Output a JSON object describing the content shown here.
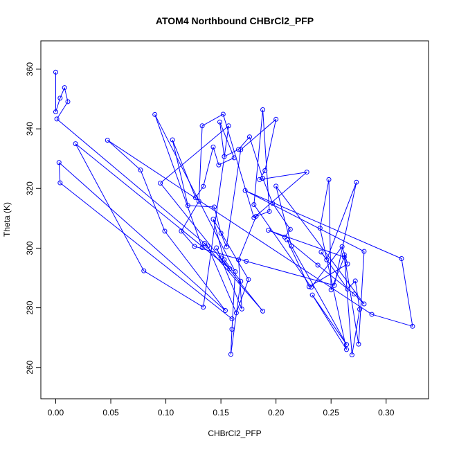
{
  "chart_data": {
    "type": "line",
    "title": "ATOM4 Northbound CHBrCl2_PFP",
    "xlabel": "CHBrCl2_PFP",
    "ylabel": "Theta (K)",
    "xlim": [
      -0.0135,
      0.3385
    ],
    "ylim": [
      249.5,
      369.5
    ],
    "x_ticks": [
      0.0,
      0.05,
      0.1,
      0.15,
      0.2,
      0.25,
      0.3
    ],
    "x_tick_labels": [
      "0.00",
      "0.05",
      "0.10",
      "0.15",
      "0.20",
      "0.25",
      "0.30"
    ],
    "y_ticks": [
      260,
      280,
      300,
      320,
      340,
      360
    ],
    "y_tick_labels": [
      "260",
      "280",
      "300",
      "320",
      "340",
      "360"
    ],
    "grid": false,
    "series": [
      {
        "marker": "open-circle",
        "color": "#0000ff",
        "points": [
          [
            0.0,
            359.0
          ],
          [
            0.0,
            345.7
          ],
          [
            0.004,
            350.3
          ],
          [
            0.008,
            353.8
          ],
          [
            0.011,
            349.1
          ],
          [
            0.001,
            343.3
          ],
          [
            0.138,
            300.7
          ],
          [
            0.164,
            278.3
          ],
          [
            0.175,
            289.5
          ],
          [
            0.143,
            309.7
          ],
          [
            0.153,
            296.1
          ],
          [
            0.168,
            288.9
          ],
          [
            0.159,
            264.4
          ],
          [
            0.16,
            272.8
          ],
          [
            0.163,
            292.1
          ],
          [
            0.09,
            344.8
          ],
          [
            0.133,
            300.2
          ],
          [
            0.135,
            301.6
          ],
          [
            0.188,
            278.9
          ],
          [
            0.095,
            321.8
          ],
          [
            0.157,
            341.0
          ],
          [
            0.134,
            280.2
          ],
          [
            0.08,
            292.4
          ],
          [
            0.018,
            335.0
          ],
          [
            0.158,
            293.1
          ],
          [
            0.15,
            296.7
          ],
          [
            0.146,
            300.1
          ],
          [
            0.169,
            279.6
          ],
          [
            0.166,
            296.1
          ],
          [
            0.182,
            310.7
          ],
          [
            0.194,
            312.3
          ],
          [
            0.188,
            346.4
          ],
          [
            0.18,
            314.6
          ],
          [
            0.232,
            286.9
          ],
          [
            0.26,
            300.5
          ],
          [
            0.265,
            294.7
          ],
          [
            0.23,
            287.1
          ],
          [
            0.21,
            302.8
          ],
          [
            0.238,
            294.3
          ],
          [
            0.271,
            284.6
          ],
          [
            0.28,
            281.3
          ],
          [
            0.2,
            320.8
          ],
          [
            0.214,
            300.7
          ],
          [
            0.264,
            267.7
          ],
          [
            0.233,
            284.3
          ],
          [
            0.264,
            266.0
          ],
          [
            0.24,
            306.7
          ],
          [
            0.248,
            323.0
          ],
          [
            0.25,
            286.0
          ],
          [
            0.262,
            297.0
          ],
          [
            0.193,
            306.0
          ],
          [
            0.208,
            303.7
          ],
          [
            0.213,
            306.3
          ],
          [
            0.197,
            315.0
          ],
          [
            0.188,
            323.4
          ],
          [
            0.176,
            337.3
          ],
          [
            0.166,
            333.1
          ],
          [
            0.153,
            330.7
          ],
          [
            0.149,
            342.3
          ],
          [
            0.162,
            330.3
          ],
          [
            0.148,
            327.9
          ],
          [
            0.143,
            333.9
          ],
          [
            0.134,
            320.7
          ],
          [
            0.127,
            316.9
          ],
          [
            0.106,
            336.3
          ],
          [
            0.12,
            314.3
          ],
          [
            0.144,
            313.8
          ],
          [
            0.15,
            305.0
          ],
          [
            0.155,
            300.4
          ],
          [
            0.168,
            333.0
          ],
          [
            0.2,
            343.2
          ],
          [
            0.19,
            326.0
          ],
          [
            0.185,
            323.0
          ],
          [
            0.228,
            325.5
          ],
          [
            0.18,
            310.2
          ],
          [
            0.152,
            344.9
          ],
          [
            0.133,
            341.0
          ],
          [
            0.13,
            315.7
          ],
          [
            0.114,
            305.7
          ],
          [
            0.126,
            300.6
          ],
          [
            0.173,
            295.6
          ],
          [
            0.253,
            287.5
          ],
          [
            0.273,
            322.1
          ],
          [
            0.246,
            296.1
          ],
          [
            0.241,
            298.7
          ],
          [
            0.265,
            286.3
          ],
          [
            0.272,
            289.0
          ],
          [
            0.276,
            279.5
          ],
          [
            0.269,
            264.2
          ],
          [
            0.262,
            297.8
          ],
          [
            0.275,
            267.8
          ],
          [
            0.28,
            298.9
          ],
          [
            0.172,
            319.3
          ],
          [
            0.314,
            296.5
          ],
          [
            0.324,
            273.8
          ],
          [
            0.287,
            277.8
          ],
          [
            0.047,
            336.2
          ],
          [
            0.077,
            326.2
          ],
          [
            0.099,
            305.7
          ],
          [
            0.154,
            279.1
          ],
          [
            0.003,
            328.7
          ],
          [
            0.004,
            321.9
          ],
          [
            0.16,
            276.3
          ]
        ]
      }
    ]
  }
}
